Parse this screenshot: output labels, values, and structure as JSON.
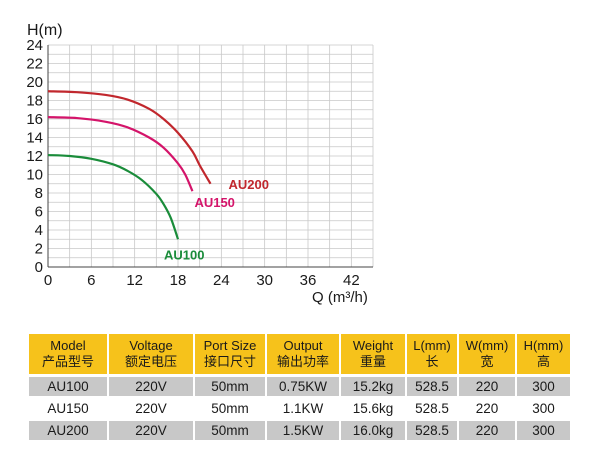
{
  "chart_data": {
    "type": "line",
    "ylabel": "H(m)",
    "xlabel": "Q (m³/h)",
    "x_ticks": [
      0,
      6,
      12,
      18,
      24,
      30,
      36,
      42
    ],
    "y_ticks": [
      0,
      2,
      4,
      6,
      8,
      10,
      12,
      14,
      16,
      18,
      20,
      22,
      24
    ],
    "xlim": [
      0,
      45
    ],
    "ylim": [
      0,
      24
    ],
    "grid": true,
    "series": [
      {
        "name": "AU200",
        "color": "#c1272d",
        "x": [
          0,
          4,
          8,
          11,
          14,
          16,
          18,
          20,
          21,
          22.5
        ],
        "y": [
          19,
          18.9,
          18.6,
          18.1,
          17.1,
          16,
          14.5,
          12.5,
          11,
          9
        ]
      },
      {
        "name": "AU150",
        "color": "#d4146a",
        "x": [
          0,
          4,
          8,
          11,
          14,
          16,
          18,
          19,
          20
        ],
        "y": [
          16.2,
          16.1,
          15.7,
          15.1,
          14,
          12.9,
          11.2,
          10,
          8.2
        ]
      },
      {
        "name": "AU100",
        "color": "#1a8c3a",
        "x": [
          0,
          3,
          6,
          9,
          11,
          13,
          15,
          16,
          17,
          18
        ],
        "y": [
          12.1,
          12,
          11.7,
          11.1,
          10.4,
          9.4,
          7.9,
          6.8,
          5.3,
          3
        ]
      }
    ]
  },
  "table": {
    "headers": [
      {
        "en": "Model",
        "zh": "产品型号"
      },
      {
        "en": "Voltage",
        "zh": "额定电压"
      },
      {
        "en": "Port Size",
        "zh": "接口尺寸"
      },
      {
        "en": "Output",
        "zh": "输出功率"
      },
      {
        "en": "Weight",
        "zh": "重量"
      },
      {
        "en": "L(mm)",
        "zh": "长"
      },
      {
        "en": "W(mm)",
        "zh": "宽"
      },
      {
        "en": "H(mm)",
        "zh": "高"
      }
    ],
    "rows": [
      [
        "AU100",
        "220V",
        "50mm",
        "0.75KW",
        "15.2kg",
        "528.5",
        "220",
        "300"
      ],
      [
        "AU150",
        "220V",
        "50mm",
        "1.1KW",
        "15.6kg",
        "528.5",
        "220",
        "300"
      ],
      [
        "AU200",
        "220V",
        "50mm",
        "1.5KW",
        "16.0kg",
        "528.5",
        "220",
        "300"
      ]
    ]
  },
  "colors": {
    "header_bg": "#f6c21b",
    "row_shade": "#c8c8c8",
    "grid": "#c8c8c8"
  }
}
